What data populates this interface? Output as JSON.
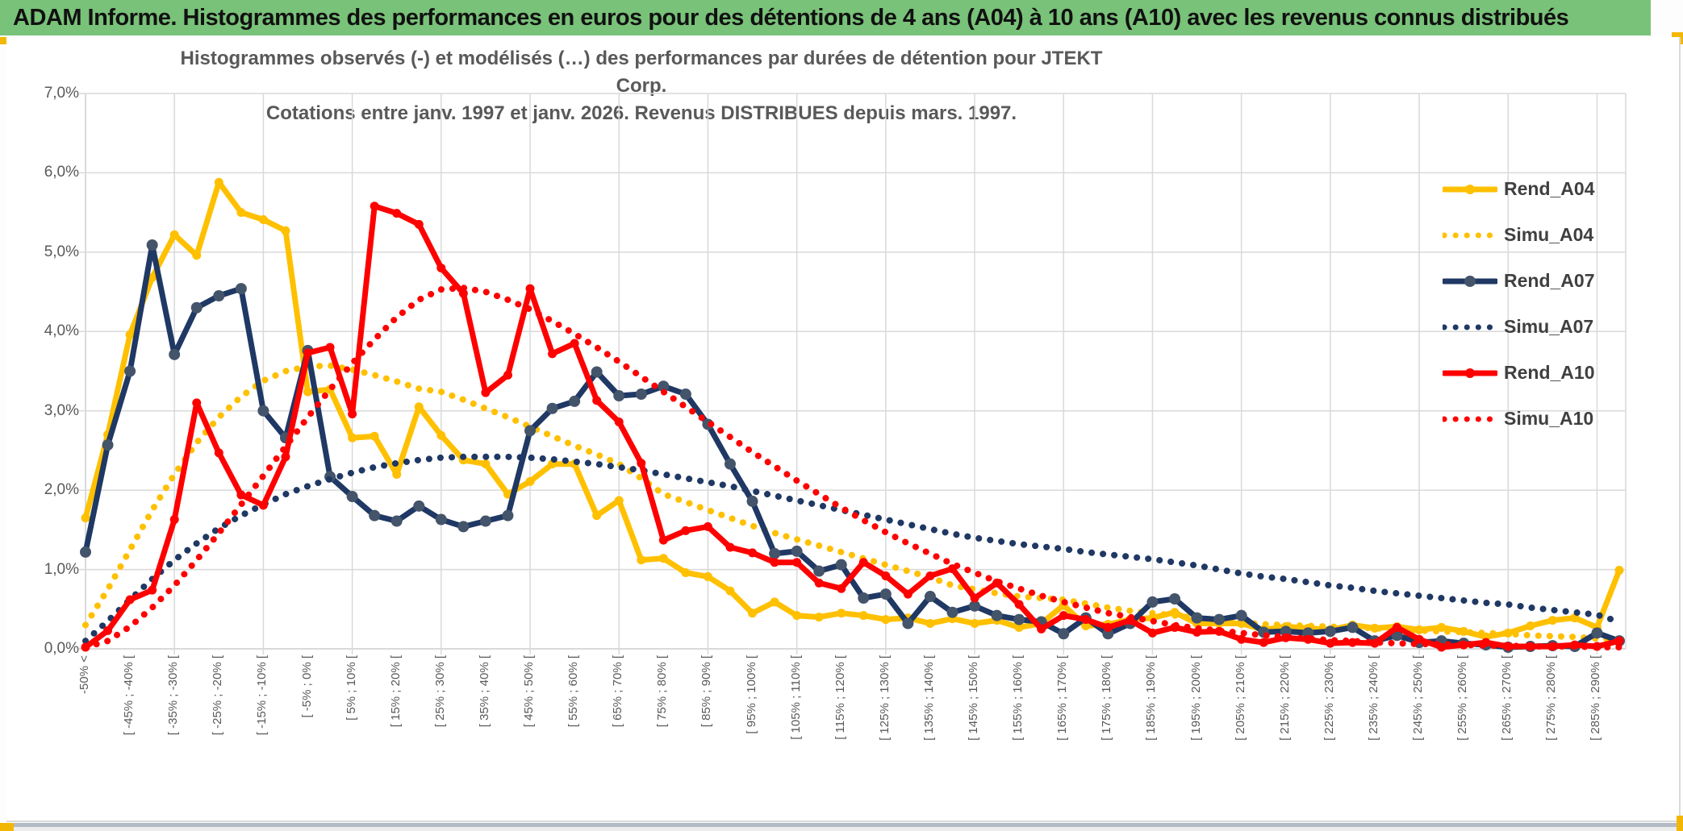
{
  "title_bar": {
    "text": "ADAM Informe. Histogrammes des performances en euros pour des détentions de 4 ans (A04) à 10 ans (A10) avec les revenus connus distribués"
  },
  "colors": {
    "title_bar_green": "#79c279",
    "accent_yellow": "#f2b705",
    "grid": "#d9d9d9",
    "axis_text": "#595959",
    "legend_text": "#404040",
    "a04": "#FFC000",
    "a07": "#1F3864",
    "a07_marker": "#44546A",
    "a10": "#FF0000",
    "bottom_band": "#b3bac6"
  },
  "chart_data": {
    "type": "line",
    "title_line1": "Histogrammes observés (-) et modélisés (…) des performances par durées de détention pour JTEKT Corp.",
    "title_line2": "Cotations entre janv. 1997 et janv. 2026. Revenus DISTRIBUES depuis mars. 1997.",
    "ylim": [
      0,
      7
    ],
    "grid": true,
    "legend_position": "right",
    "y_tick_labels": [
      "0,0%",
      "1,0%",
      "2,0%",
      "3,0%",
      "4,0%",
      "5,0%",
      "6,0%",
      "7,0%"
    ],
    "x_label_every": 2,
    "bin_labels": [
      "-50% <",
      "",
      "[ -45% ; -40% [",
      "",
      "[ -35% ; -30% [",
      "",
      "[ -25% ; -20% [",
      "",
      "[ -15% ; -10% [",
      "",
      "[ -5% ; 0% [",
      "",
      "[ 5% ; 10% [",
      "",
      "[ 15% ; 20% [",
      "",
      "[ 25% ; 30% [",
      "",
      "[ 35% ; 40% [",
      "",
      "[ 45% ; 50% [",
      "",
      "[ 55% ; 60% [",
      "",
      "[ 65% ; 70% [",
      "",
      "[ 75% ; 80% [",
      "",
      "[ 85% ; 90% [",
      "",
      "[ 95% ; 100% [",
      "",
      "[ 105% ; 110% [",
      "",
      "[ 115% ; 120% [",
      "",
      "[ 125% ; 130% [",
      "",
      "[ 135% ; 140% [",
      "",
      "[ 145% ; 150% [",
      "",
      "[ 155% ; 160% [",
      "",
      "[ 165% ; 170% [",
      "",
      "[ 175% ; 180% [",
      "",
      "[ 185% ; 190% [",
      "",
      "[ 195% ; 200% [",
      "",
      "[ 205% ; 210% [",
      "",
      "[ 215% ; 220% [",
      "",
      "[ 225% ; 230% [",
      "",
      "[ 235% ; 240% [",
      "",
      "[ 245% ; 250% [",
      "",
      "[ 255% ; 260% [",
      "",
      "[ 265% ; 270% [",
      "",
      "[ 275% ; 280% [",
      "",
      "[ 285% ; 290% [",
      ""
    ],
    "series": [
      {
        "name": "Rend_A04",
        "style": "solid",
        "color": "#FFC000",
        "marker": "#FFC000",
        "values": [
          1.65,
          2.7,
          3.96,
          4.68,
          5.22,
          4.96,
          5.88,
          5.5,
          5.41,
          5.27,
          3.24,
          3.27,
          2.66,
          2.68,
          2.2,
          3.05,
          2.69,
          2.38,
          2.33,
          1.95,
          2.11,
          2.33,
          2.33,
          1.68,
          1.87,
          1.12,
          1.14,
          0.96,
          0.91,
          0.73,
          0.45,
          0.59,
          0.42,
          0.4,
          0.45,
          0.42,
          0.37,
          0.39,
          0.32,
          0.38,
          0.32,
          0.36,
          0.27,
          0.32,
          0.55,
          0.29,
          0.31,
          0.37,
          0.39,
          0.46,
          0.32,
          0.32,
          0.32,
          0.24,
          0.28,
          0.26,
          0.24,
          0.3,
          0.26,
          0.28,
          0.24,
          0.27,
          0.22,
          0.15,
          0.2,
          0.29,
          0.36,
          0.39,
          0.27,
          0.99
        ]
      },
      {
        "name": "Simu_A04",
        "style": "dotted",
        "color": "#FFC000",
        "marker": "none",
        "values": [
          0.3,
          0.75,
          1.25,
          1.75,
          2.2,
          2.6,
          2.92,
          3.18,
          3.38,
          3.5,
          3.56,
          3.57,
          3.52,
          3.45,
          3.37,
          3.28,
          3.24,
          3.14,
          3.03,
          2.92,
          2.8,
          2.68,
          2.56,
          2.45,
          2.33,
          2.15,
          1.95,
          1.85,
          1.75,
          1.65,
          1.55,
          1.46,
          1.38,
          1.3,
          1.22,
          1.14,
          1.06,
          0.98,
          0.9,
          0.8,
          0.75,
          0.7,
          0.66,
          0.64,
          0.62,
          0.57,
          0.52,
          0.48,
          0.45,
          0.42,
          0.39,
          0.36,
          0.33,
          0.31,
          0.3,
          0.29,
          0.28,
          0.27,
          0.26,
          0.25,
          0.23,
          0.22,
          0.21,
          0.2,
          0.19,
          0.17,
          0.16,
          0.15,
          0.13,
          0.12
        ]
      },
      {
        "name": "Rend_A07",
        "style": "solid",
        "color": "#1F3864",
        "marker": "#44546A",
        "values": [
          1.22,
          2.57,
          3.5,
          5.09,
          3.71,
          4.3,
          4.45,
          4.54,
          3.0,
          2.66,
          3.76,
          2.17,
          1.92,
          1.68,
          1.61,
          1.8,
          1.63,
          1.54,
          1.61,
          1.68,
          2.75,
          3.03,
          3.12,
          3.49,
          3.19,
          3.21,
          3.31,
          3.21,
          2.83,
          2.33,
          1.86,
          1.2,
          1.23,
          0.98,
          1.06,
          0.64,
          0.69,
          0.32,
          0.66,
          0.46,
          0.54,
          0.42,
          0.37,
          0.34,
          0.19,
          0.39,
          0.19,
          0.32,
          0.59,
          0.63,
          0.39,
          0.37,
          0.42,
          0.21,
          0.22,
          0.2,
          0.22,
          0.27,
          0.1,
          0.17,
          0.08,
          0.1,
          0.07,
          0.05,
          0.02,
          0.03,
          0.04,
          0.03,
          0.2,
          0.1
        ]
      },
      {
        "name": "Simu_A07",
        "style": "dotted",
        "color": "#1F3864",
        "marker": "none",
        "values": [
          0.1,
          0.35,
          0.62,
          0.88,
          1.12,
          1.33,
          1.52,
          1.68,
          1.82,
          1.95,
          2.05,
          2.14,
          2.22,
          2.29,
          2.34,
          2.38,
          2.41,
          2.42,
          2.42,
          2.42,
          2.41,
          2.39,
          2.36,
          2.33,
          2.29,
          2.25,
          2.2,
          2.15,
          2.1,
          2.05,
          1.99,
          1.93,
          1.87,
          1.81,
          1.75,
          1.69,
          1.63,
          1.57,
          1.51,
          1.45,
          1.4,
          1.36,
          1.32,
          1.29,
          1.26,
          1.22,
          1.19,
          1.16,
          1.13,
          1.09,
          1.05,
          1.0,
          0.95,
          0.91,
          0.88,
          0.84,
          0.8,
          0.77,
          0.73,
          0.7,
          0.67,
          0.64,
          0.61,
          0.58,
          0.56,
          0.52,
          0.49,
          0.46,
          0.43,
          0.34
        ]
      },
      {
        "name": "Rend_A10",
        "style": "solid",
        "color": "#FF0000",
        "marker": "#FF0000",
        "values": [
          0.02,
          0.23,
          0.62,
          0.74,
          1.63,
          3.1,
          2.47,
          1.94,
          1.81,
          2.42,
          3.73,
          3.8,
          2.96,
          5.58,
          5.49,
          5.35,
          4.8,
          4.48,
          3.23,
          3.45,
          4.54,
          3.72,
          3.85,
          3.13,
          2.86,
          2.34,
          1.37,
          1.49,
          1.54,
          1.28,
          1.21,
          1.09,
          1.09,
          0.83,
          0.76,
          1.09,
          0.92,
          0.69,
          0.92,
          1.01,
          0.64,
          0.83,
          0.56,
          0.25,
          0.42,
          0.37,
          0.27,
          0.36,
          0.2,
          0.27,
          0.21,
          0.22,
          0.12,
          0.08,
          0.14,
          0.12,
          0.07,
          0.08,
          0.07,
          0.27,
          0.12,
          0.02,
          0.05,
          0.08,
          0.03,
          0.03,
          0.03,
          0.05,
          0.03,
          0.1
        ]
      },
      {
        "name": "Simu_A10",
        "style": "dotted",
        "color": "#FF0000",
        "marker": "none",
        "values": [
          0.02,
          0.1,
          0.28,
          0.52,
          0.8,
          1.12,
          1.46,
          1.82,
          2.18,
          2.55,
          2.92,
          3.27,
          3.6,
          3.9,
          4.18,
          4.4,
          4.53,
          4.55,
          4.5,
          4.4,
          4.28,
          4.13,
          3.97,
          3.8,
          3.62,
          3.43,
          3.24,
          3.05,
          2.86,
          2.67,
          2.48,
          2.3,
          2.12,
          1.95,
          1.78,
          1.62,
          1.47,
          1.33,
          1.2,
          1.07,
          0.96,
          0.85,
          0.76,
          0.67,
          0.59,
          0.52,
          0.45,
          0.4,
          0.35,
          0.3,
          0.26,
          0.23,
          0.2,
          0.17,
          0.15,
          0.13,
          0.11,
          0.1,
          0.08,
          0.07,
          0.06,
          0.06,
          0.05,
          0.04,
          0.04,
          0.03,
          0.03,
          0.03,
          0.02,
          0.02
        ]
      }
    ]
  }
}
